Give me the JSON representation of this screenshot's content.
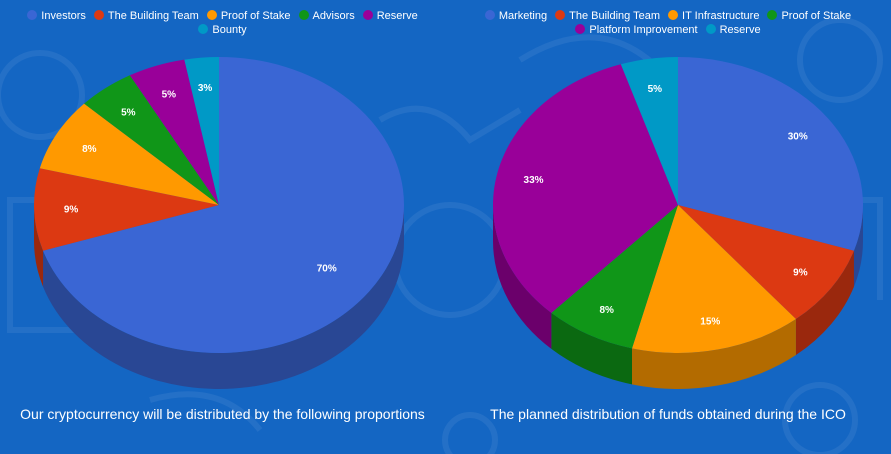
{
  "chart_data": [
    {
      "type": "pie",
      "caption": "Our cryptocurrency will be distributed by the following proportions",
      "legend_rows": [
        [
          "Investors",
          "The Building Team",
          "Proof of Stake",
          "Advisors",
          "Reserve"
        ],
        [
          "Bounty"
        ]
      ],
      "slices": [
        {
          "name": "Investors",
          "value": 70,
          "label": "70%",
          "color": "#3a66d4"
        },
        {
          "name": "The Building Team",
          "value": 9,
          "label": "9%",
          "color": "#dc3912"
        },
        {
          "name": "Proof of Stake",
          "value": 8,
          "label": "8%",
          "color": "#ff9900"
        },
        {
          "name": "Advisors",
          "value": 5,
          "label": "5%",
          "color": "#109618"
        },
        {
          "name": "Reserve",
          "value": 5,
          "label": "5%",
          "color": "#990099"
        },
        {
          "name": "Bounty",
          "value": 3,
          "label": "3%",
          "color": "#0099c6"
        }
      ]
    },
    {
      "type": "pie",
      "caption": "The planned distribution of funds obtained during the ICO",
      "legend_rows": [
        [
          "Marketing",
          "The Building Team",
          "IT Infrastructure",
          "Proof of Stake"
        ],
        [
          "Platform Improvement",
          "Reserve"
        ]
      ],
      "slices": [
        {
          "name": "Marketing",
          "value": 30,
          "label": "30%",
          "color": "#3a66d4"
        },
        {
          "name": "The Building Team",
          "value": 9,
          "label": "9%",
          "color": "#dc3912"
        },
        {
          "name": "IT Infrastructure",
          "value": 15,
          "label": "15%",
          "color": "#ff9900"
        },
        {
          "name": "Proof of Stake",
          "value": 8,
          "label": "8%",
          "color": "#109618"
        },
        {
          "name": "Platform Improvement",
          "value": 33,
          "label": "33%",
          "color": "#990099"
        },
        {
          "name": "Reserve",
          "value": 5,
          "label": "5%",
          "color": "#0099c6"
        }
      ]
    }
  ]
}
